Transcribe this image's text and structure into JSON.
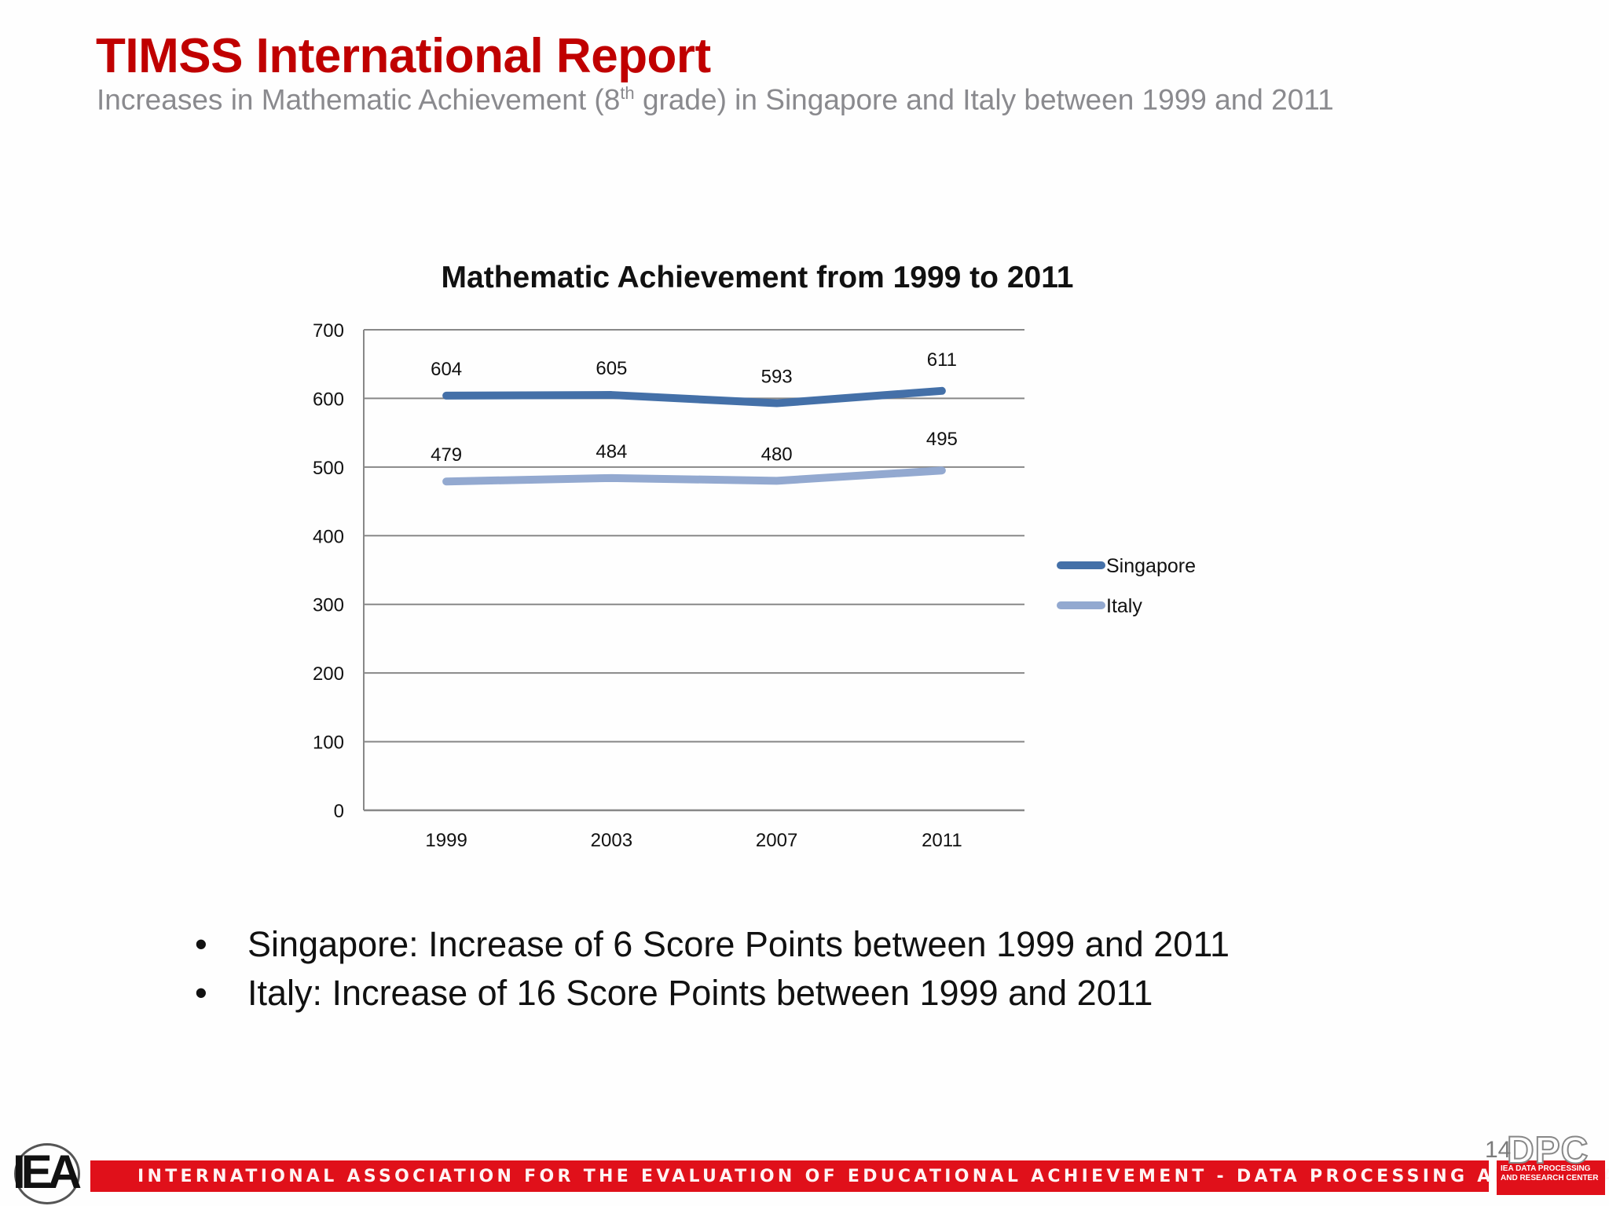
{
  "header": {
    "title": "TIMSS International Report",
    "subtitle_pre": "Increases in Mathematic Achievement (8",
    "subtitle_sup": "th",
    "subtitle_post": " grade) in Singapore and Italy between 1999 and 2011"
  },
  "chart_data": {
    "type": "line",
    "title": "Mathematic Achievement from 1999 to 2011",
    "xlabel": "",
    "ylabel": "",
    "categories": [
      "1999",
      "2003",
      "2007",
      "2011"
    ],
    "series": [
      {
        "name": "Singapore",
        "values": [
          604,
          605,
          593,
          611
        ],
        "color": "#4470a8"
      },
      {
        "name": "Italy",
        "values": [
          479,
          484,
          480,
          495
        ],
        "color": "#93a9d0"
      }
    ],
    "ylim": [
      0,
      700
    ],
    "yticks": [
      0,
      100,
      200,
      300,
      400,
      500,
      600,
      700
    ],
    "grid": true,
    "data_labels": true,
    "legend_position": "right"
  },
  "bullets": [
    "Singapore: Increase of 6 Score Points between 1999 and 2011",
    "Italy: Increase of 16 Score Points between 1999 and 2011"
  ],
  "footer": {
    "banner_text": "INTERNATIONAL ASSOCIATION FOR THE EVALUATION OF EDUCATIONAL ACHIEVEMENT - DATA PROCESSING AND RESEARCH CENTER",
    "left_logo": "IEA",
    "right_logo": "DPC",
    "right_logo_sub": "IEA DATA PROCESSING\nAND RESEARCH CENTER",
    "page_number": "14"
  },
  "colors": {
    "title": "#c00000",
    "subtitle": "#8a8a8e",
    "banner": "#e0101a",
    "gridline": "#888888"
  }
}
